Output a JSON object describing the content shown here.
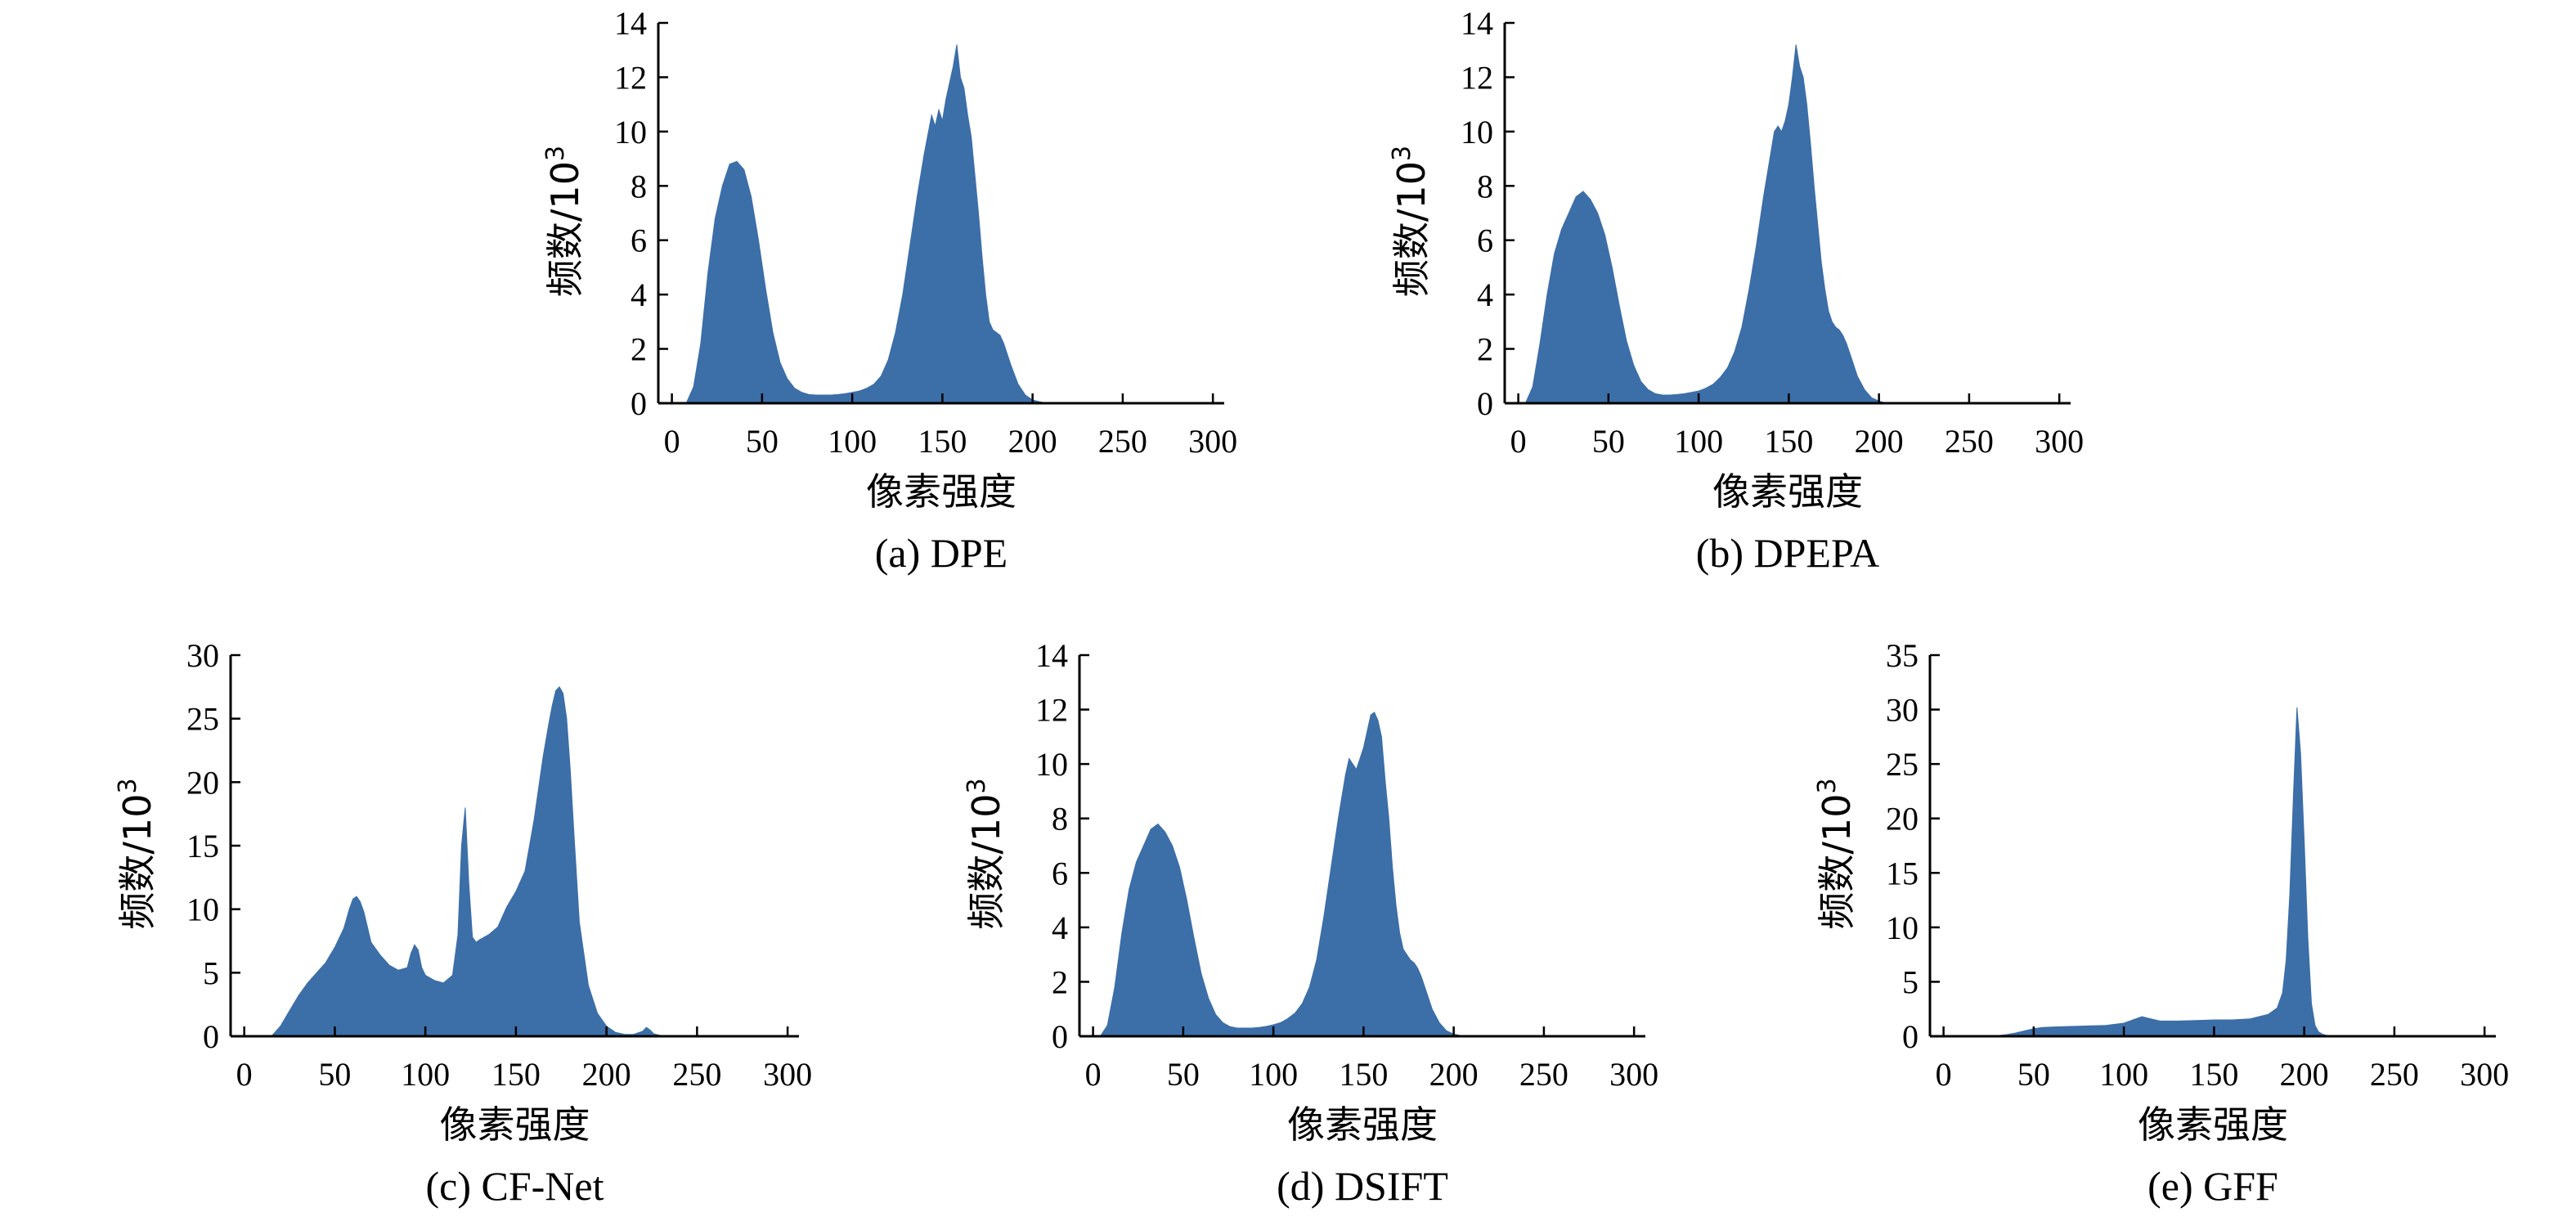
{
  "figure": {
    "bar_color": "#3c6ea8",
    "axis_color": "#000000"
  },
  "chart_data": [
    {
      "type": "bar",
      "caption": "(a) DPE",
      "xlabel": "像素强度",
      "ylabel": "频数/10",
      "ylabel_sup": "3",
      "xlim": [
        0,
        300
      ],
      "ylim": [
        0,
        14
      ],
      "xticks": [
        0,
        50,
        100,
        150,
        200,
        250,
        300
      ],
      "yticks": [
        0,
        2,
        4,
        6,
        8,
        10,
        12,
        14
      ],
      "series": [
        {
          "x": [
            0,
            4,
            8,
            12,
            16,
            20,
            24,
            28,
            32,
            36,
            40,
            44,
            48,
            52,
            56,
            60,
            64,
            68,
            72,
            76,
            80,
            84,
            88,
            92,
            96,
            100,
            104,
            108,
            112,
            116,
            120,
            124,
            128,
            132,
            136,
            140,
            144,
            146,
            148,
            150,
            152,
            154,
            156,
            158,
            160,
            162,
            164,
            166,
            168,
            170,
            172,
            174,
            176,
            178,
            180,
            182,
            184,
            188,
            192,
            196,
            200,
            204,
            208,
            212,
            216,
            220
          ],
          "y": [
            0,
            0,
            0,
            0.6,
            2.2,
            4.8,
            6.8,
            8.0,
            8.8,
            8.9,
            8.6,
            7.6,
            6.0,
            4.2,
            2.6,
            1.5,
            0.9,
            0.55,
            0.4,
            0.32,
            0.3,
            0.3,
            0.3,
            0.32,
            0.35,
            0.4,
            0.45,
            0.55,
            0.7,
            1.0,
            1.6,
            2.6,
            4.0,
            5.8,
            7.6,
            9.2,
            10.6,
            10.2,
            10.8,
            10.4,
            11.2,
            11.8,
            12.4,
            13.2,
            12.0,
            11.6,
            10.6,
            9.8,
            8.4,
            7.0,
            5.4,
            4.0,
            3.0,
            2.7,
            2.6,
            2.5,
            2.2,
            1.4,
            0.7,
            0.3,
            0.12,
            0.05,
            0,
            0,
            0,
            0
          ]
        }
      ]
    },
    {
      "type": "bar",
      "caption": "(b) DPEPA",
      "xlabel": "像素强度",
      "ylabel": "频数/10",
      "ylabel_sup": "3",
      "xlim": [
        0,
        300
      ],
      "ylim": [
        0,
        14
      ],
      "xticks": [
        0,
        50,
        100,
        150,
        200,
        250,
        300
      ],
      "yticks": [
        0,
        2,
        4,
        6,
        8,
        10,
        12,
        14
      ],
      "series": [
        {
          "x": [
            0,
            4,
            8,
            12,
            16,
            20,
            24,
            28,
            32,
            36,
            40,
            44,
            48,
            52,
            56,
            60,
            64,
            68,
            72,
            76,
            80,
            84,
            88,
            92,
            96,
            100,
            104,
            108,
            112,
            116,
            120,
            124,
            128,
            132,
            136,
            140,
            142,
            144,
            146,
            148,
            150,
            152,
            154,
            156,
            158,
            160,
            162,
            164,
            166,
            168,
            170,
            172,
            174,
            176,
            178,
            180,
            182,
            184,
            188,
            192,
            196,
            200,
            204,
            208,
            212,
            216,
            220
          ],
          "y": [
            0,
            0,
            0.6,
            2.2,
            4.0,
            5.5,
            6.4,
            7.0,
            7.6,
            7.8,
            7.5,
            7.0,
            6.2,
            5.0,
            3.6,
            2.3,
            1.4,
            0.8,
            0.5,
            0.35,
            0.3,
            0.3,
            0.32,
            0.35,
            0.4,
            0.45,
            0.55,
            0.7,
            0.95,
            1.3,
            1.9,
            2.8,
            4.2,
            5.8,
            7.6,
            9.2,
            10.0,
            10.2,
            10.0,
            10.4,
            11.0,
            12.0,
            13.2,
            12.4,
            12.0,
            11.0,
            9.6,
            8.0,
            6.6,
            5.2,
            4.2,
            3.4,
            3.0,
            2.8,
            2.7,
            2.5,
            2.2,
            1.8,
            1.0,
            0.5,
            0.2,
            0.08,
            0,
            0,
            0,
            0,
            0
          ]
        }
      ]
    },
    {
      "type": "bar",
      "caption": "(c) CF-Net",
      "xlabel": "像素强度",
      "ylabel": "频数/10",
      "ylabel_sup": "3",
      "xlim": [
        0,
        300
      ],
      "ylim": [
        0,
        30
      ],
      "xticks": [
        0,
        50,
        100,
        150,
        200,
        250,
        300
      ],
      "yticks": [
        0,
        5,
        10,
        15,
        20,
        25,
        30
      ],
      "series": [
        {
          "x": [
            0,
            5,
            10,
            15,
            20,
            25,
            30,
            35,
            40,
            45,
            50,
            55,
            58,
            60,
            62,
            64,
            66,
            68,
            70,
            75,
            80,
            85,
            90,
            92,
            94,
            96,
            98,
            100,
            105,
            110,
            115,
            118,
            120,
            122,
            124,
            126,
            128,
            130,
            135,
            140,
            145,
            150,
            155,
            160,
            165,
            168,
            170,
            172,
            174,
            176,
            178,
            180,
            182,
            185,
            190,
            195,
            200,
            205,
            210,
            215,
            220,
            222,
            224,
            226,
            230,
            240,
            250,
            260,
            270,
            280,
            290,
            300
          ],
          "y": [
            0,
            0,
            0,
            0,
            0.8,
            2.0,
            3.2,
            4.2,
            5.0,
            5.8,
            7.0,
            8.5,
            10.0,
            10.8,
            11.0,
            10.6,
            9.8,
            8.6,
            7.4,
            6.4,
            5.6,
            5.2,
            5.4,
            6.5,
            7.2,
            6.8,
            5.4,
            4.8,
            4.4,
            4.2,
            4.8,
            8.0,
            15.0,
            18.0,
            12.0,
            7.8,
            7.4,
            7.6,
            8.0,
            8.6,
            10.2,
            11.4,
            13.0,
            17.0,
            22.0,
            24.5,
            26.0,
            27.2,
            27.5,
            27.0,
            25.0,
            21.0,
            16.0,
            9.0,
            4.0,
            1.8,
            0.8,
            0.3,
            0.15,
            0.15,
            0.4,
            0.7,
            0.5,
            0.2,
            0.05,
            0,
            0,
            0,
            0,
            0,
            0,
            0
          ]
        }
      ]
    },
    {
      "type": "bar",
      "caption": "(d) DSIFT",
      "xlabel": "像素强度",
      "ylabel": "频数/10",
      "ylabel_sup": "3",
      "xlim": [
        0,
        300
      ],
      "ylim": [
        0,
        14
      ],
      "xticks": [
        0,
        50,
        100,
        150,
        200,
        250,
        300
      ],
      "yticks": [
        0,
        2,
        4,
        6,
        8,
        10,
        12,
        14
      ],
      "series": [
        {
          "x": [
            0,
            4,
            8,
            12,
            16,
            20,
            24,
            28,
            32,
            36,
            40,
            44,
            48,
            52,
            56,
            60,
            64,
            68,
            72,
            76,
            80,
            84,
            88,
            92,
            96,
            100,
            104,
            108,
            112,
            116,
            120,
            124,
            128,
            132,
            136,
            140,
            142,
            144,
            146,
            148,
            150,
            152,
            154,
            156,
            158,
            160,
            162,
            164,
            166,
            168,
            170,
            172,
            174,
            176,
            178,
            180,
            182,
            184,
            188,
            192,
            196,
            200,
            204,
            208,
            212,
            216,
            220,
            240,
            260,
            280,
            300
          ],
          "y": [
            0,
            0,
            0.4,
            1.8,
            3.8,
            5.4,
            6.4,
            7.0,
            7.6,
            7.8,
            7.5,
            7.0,
            6.2,
            5.0,
            3.6,
            2.3,
            1.4,
            0.8,
            0.5,
            0.35,
            0.3,
            0.3,
            0.3,
            0.32,
            0.36,
            0.42,
            0.5,
            0.65,
            0.85,
            1.2,
            1.8,
            2.8,
            4.4,
            6.2,
            8.0,
            9.6,
            10.2,
            10.0,
            9.8,
            10.2,
            10.6,
            11.2,
            11.8,
            11.9,
            11.6,
            11.0,
            9.4,
            8.0,
            6.2,
            4.8,
            3.8,
            3.2,
            3.0,
            2.8,
            2.7,
            2.5,
            2.2,
            1.8,
            1.0,
            0.5,
            0.2,
            0.08,
            0.02,
            0,
            0,
            0,
            0,
            0,
            0,
            0,
            0
          ]
        }
      ]
    },
    {
      "type": "bar",
      "caption": "(e) GFF",
      "xlabel": "像素强度",
      "ylabel": "频数/10",
      "ylabel_sup": "3",
      "xlim": [
        0,
        300
      ],
      "ylim": [
        0,
        35
      ],
      "xticks": [
        0,
        50,
        100,
        150,
        200,
        250,
        300
      ],
      "yticks": [
        0,
        5,
        10,
        15,
        20,
        25,
        30,
        35
      ],
      "series": [
        {
          "x": [
            0,
            10,
            20,
            30,
            35,
            40,
            45,
            50,
            55,
            60,
            70,
            80,
            90,
            100,
            105,
            110,
            115,
            120,
            130,
            140,
            150,
            160,
            170,
            175,
            180,
            185,
            188,
            190,
            192,
            194,
            196,
            198,
            200,
            202,
            204,
            206,
            208,
            210,
            212,
            215,
            220,
            230,
            240,
            250,
            260,
            270,
            280,
            290,
            300
          ],
          "y": [
            0,
            0,
            0,
            0.05,
            0.15,
            0.3,
            0.5,
            0.7,
            0.8,
            0.85,
            0.9,
            0.95,
            1.0,
            1.2,
            1.5,
            1.8,
            1.6,
            1.4,
            1.4,
            1.45,
            1.5,
            1.5,
            1.6,
            1.8,
            2.0,
            2.6,
            4.0,
            7.0,
            13.0,
            22.0,
            30.2,
            26.0,
            18.0,
            9.0,
            3.0,
            1.0,
            0.4,
            0.2,
            0.1,
            0.05,
            0.02,
            0,
            0,
            0,
            0,
            0,
            0,
            0,
            0
          ]
        }
      ]
    }
  ]
}
